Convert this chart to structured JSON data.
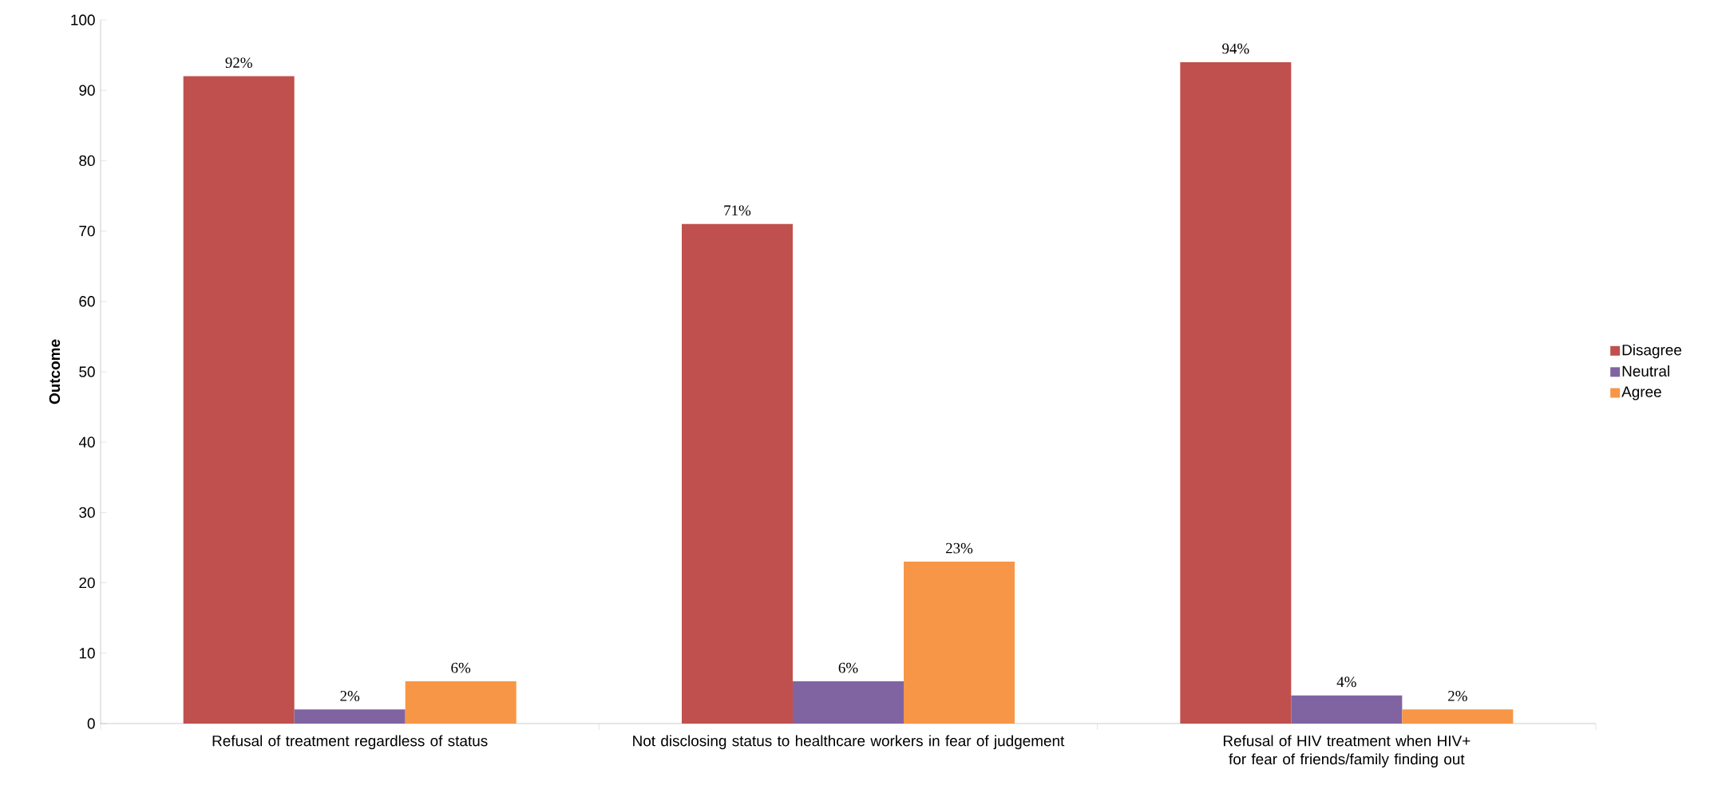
{
  "chart_data": {
    "type": "bar",
    "ylabel": "Outcome",
    "categories": [
      "Refusal of treatment regardless of status",
      "Not disclosing status to healthcare workers in fear of judgement",
      "Refusal of HIV treatment when HIV+ for fear of friends/family finding out"
    ],
    "series": [
      {
        "name": "Disagree",
        "color": "#c0504d",
        "values": [
          92,
          71,
          94
        ],
        "value_labels": [
          "92%",
          "71%",
          "94%"
        ]
      },
      {
        "name": "Neutral",
        "color": "#8064a2",
        "values": [
          2,
          6,
          4
        ],
        "value_labels": [
          "2%",
          "6%",
          "4%"
        ]
      },
      {
        "name": "Agree",
        "color": "#f79646",
        "values": [
          6,
          23,
          2
        ],
        "value_labels": [
          "6%",
          "23%",
          "2%"
        ]
      }
    ],
    "ylim": [
      0,
      100
    ],
    "yticks": [
      0,
      10,
      20,
      30,
      40,
      50,
      60,
      70,
      80,
      90,
      100
    ],
    "legend": "right",
    "grid": false
  }
}
